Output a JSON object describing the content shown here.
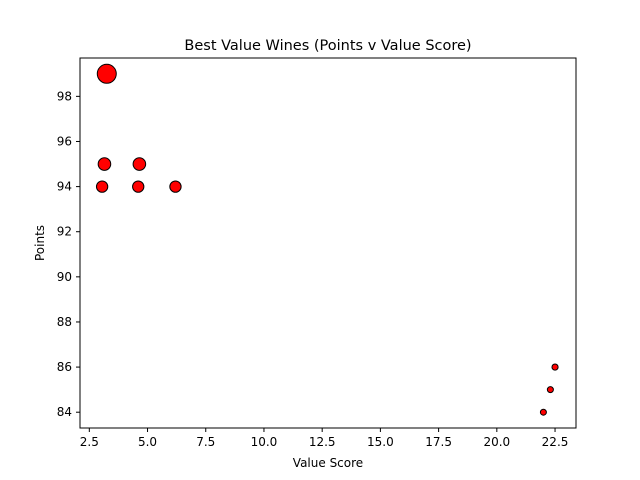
{
  "chart_data": {
    "type": "scatter",
    "title": "Best Value Wines (Points v Value Score)",
    "xlabel": "Value Score",
    "ylabel": "Points",
    "xlim": [
      2.1,
      23.4
    ],
    "ylim": [
      83.3,
      99.7
    ],
    "xticks": [
      2.5,
      5.0,
      7.5,
      10.0,
      12.5,
      15.0,
      17.5,
      20.0,
      22.5
    ],
    "xtick_labels": [
      "2.5",
      "5.0",
      "7.5",
      "10.0",
      "12.5",
      "15.0",
      "17.5",
      "20.0",
      "22.5"
    ],
    "yticks": [
      84,
      86,
      88,
      90,
      92,
      94,
      96,
      98
    ],
    "ytick_labels": [
      "84",
      "86",
      "88",
      "90",
      "92",
      "94",
      "96",
      "98"
    ],
    "grid": false,
    "marker_color": "#ff0000",
    "marker_edge_color": "#000000",
    "points": [
      {
        "x": 3.25,
        "y": 99,
        "size": 99
      },
      {
        "x": 3.15,
        "y": 95,
        "size": 95
      },
      {
        "x": 4.65,
        "y": 95,
        "size": 95
      },
      {
        "x": 3.05,
        "y": 94,
        "size": 94
      },
      {
        "x": 4.6,
        "y": 94,
        "size": 94
      },
      {
        "x": 6.2,
        "y": 94,
        "size": 94
      },
      {
        "x": 22.5,
        "y": 86,
        "size": 86
      },
      {
        "x": 22.3,
        "y": 85,
        "size": 85
      },
      {
        "x": 22.0,
        "y": 84,
        "size": 84
      }
    ]
  }
}
